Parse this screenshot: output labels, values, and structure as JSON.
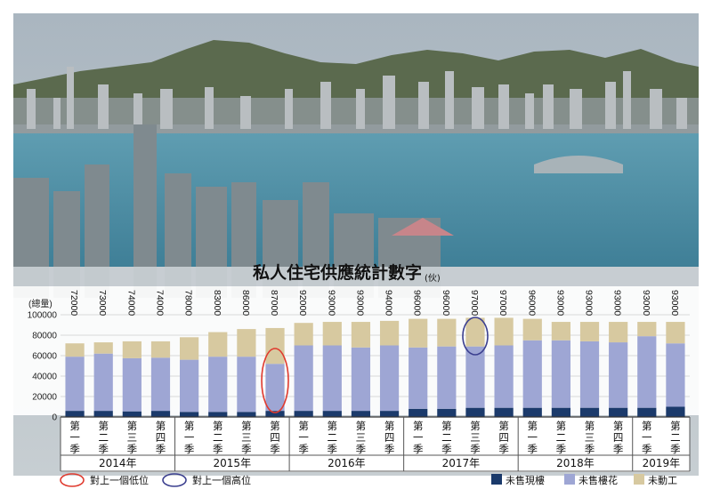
{
  "chart_data": {
    "type": "bar",
    "stacked": true,
    "title": "私人住宅供應統計數字",
    "title_unit": "(伙)",
    "ylabel": "(總量)",
    "ylim": [
      0,
      100000
    ],
    "yticks": [
      "0",
      "20000",
      "40000",
      "60000",
      "80000",
      "100000"
    ],
    "ytick_values": [
      0,
      20000,
      40000,
      60000,
      80000,
      100000
    ],
    "years": [
      {
        "label": "2014年",
        "count": 4
      },
      {
        "label": "2015年",
        "count": 4
      },
      {
        "label": "2016年",
        "count": 4
      },
      {
        "label": "2017年",
        "count": 4
      },
      {
        "label": "2018年",
        "count": 4
      },
      {
        "label": "2019年",
        "count": 2
      }
    ],
    "categories": [
      "第一季",
      "第二季",
      "第三季",
      "第四季",
      "第一季",
      "第二季",
      "第三季",
      "第四季",
      "第一季",
      "第二季",
      "第三季",
      "第四季",
      "第一季",
      "第二季",
      "第三季",
      "第四季",
      "第一季",
      "第二季",
      "第三季",
      "第四季",
      "第一季",
      "第二季"
    ],
    "totals": [
      72000,
      73000,
      74000,
      74000,
      78000,
      83000,
      86000,
      87000,
      92000,
      93000,
      93000,
      94000,
      96000,
      96000,
      97000,
      97000,
      96000,
      93000,
      93000,
      93000,
      93000,
      93000
    ],
    "total_labels": [
      "72000",
      "73000",
      "74000",
      "74000",
      "78000",
      "83000",
      "86000",
      "87000",
      "92000",
      "93000",
      "93000",
      "94000",
      "96000",
      "96000",
      "97000",
      "97000",
      "96000",
      "93000",
      "93000",
      "93000",
      "93000",
      "93000"
    ],
    "series": [
      {
        "name": "未售現樓",
        "color": "#1b3a6b",
        "values": [
          6000,
          6000,
          5500,
          6000,
          5000,
          5000,
          5000,
          6000,
          6000,
          6000,
          6000,
          6000,
          8000,
          8000,
          9000,
          9000,
          9000,
          9000,
          9000,
          9000,
          9000,
          10000
        ]
      },
      {
        "name": "未售樓花",
        "color": "#9ea6d4",
        "values": [
          53000,
          56000,
          52000,
          52000,
          51000,
          54000,
          54000,
          46000,
          64000,
          64000,
          62000,
          64000,
          60000,
          61000,
          60000,
          61000,
          66000,
          66000,
          65000,
          64000,
          70000,
          62000
        ]
      },
      {
        "name": "未動工",
        "color": "#d7c9a0",
        "values": [
          13000,
          11000,
          16500,
          16000,
          22000,
          24000,
          27000,
          35000,
          22000,
          23000,
          25000,
          24000,
          28000,
          27000,
          28000,
          27000,
          21000,
          18000,
          19000,
          20000,
          14000,
          21000
        ]
      }
    ],
    "highlights": [
      {
        "index": 7,
        "kind": "low"
      },
      {
        "index": 14,
        "kind": "high"
      }
    ],
    "legend": {
      "low_label": "對上一個低位",
      "high_label": "對上一個高位",
      "low_color": "#e03a2e",
      "high_color": "#3b3f8f"
    }
  }
}
